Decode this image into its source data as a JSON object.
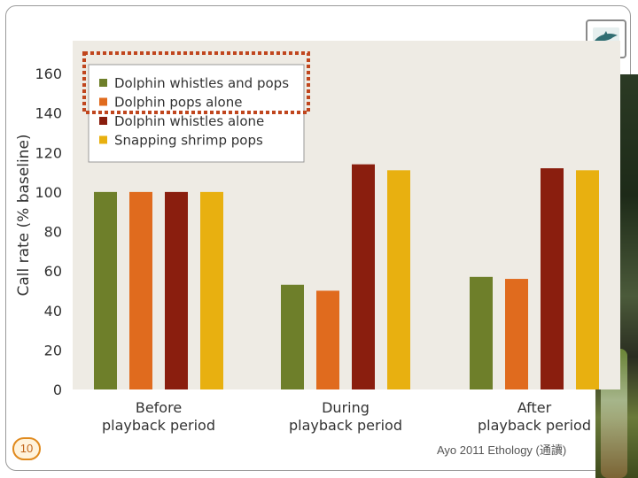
{
  "slide": {
    "page_number": "10",
    "citation": "Ayo 2011 Ethology (通讀)"
  },
  "colors": {
    "plot_background": "#eeebe4",
    "highlight_box": "#c0461e",
    "series": [
      "#6e7f2a",
      "#e06b1e",
      "#8a1e0e",
      "#e8b010"
    ]
  },
  "chart_data": {
    "type": "bar",
    "title": "",
    "xlabel": "",
    "ylabel": "Call rate (% baseline)",
    "ylim": [
      0,
      170
    ],
    "yticks": [
      0,
      20,
      40,
      60,
      80,
      100,
      120,
      140,
      160
    ],
    "grid": false,
    "legend_position": "top-left",
    "categories": [
      [
        "Before",
        "playback period"
      ],
      [
        "During",
        "playback period"
      ],
      [
        "After",
        "playback period"
      ]
    ],
    "series": [
      {
        "name": "Dolphin whistles and pops",
        "values": [
          100,
          53,
          57
        ]
      },
      {
        "name": "Dolphin pops alone",
        "values": [
          100,
          50,
          56
        ]
      },
      {
        "name": "Dolphin whistles alone",
        "values": [
          100,
          114,
          112
        ]
      },
      {
        "name": "Snapping shrimp pops",
        "values": [
          100,
          111,
          111
        ]
      }
    ],
    "annotations": [
      "dotted highlight box around first two legend entries"
    ]
  }
}
